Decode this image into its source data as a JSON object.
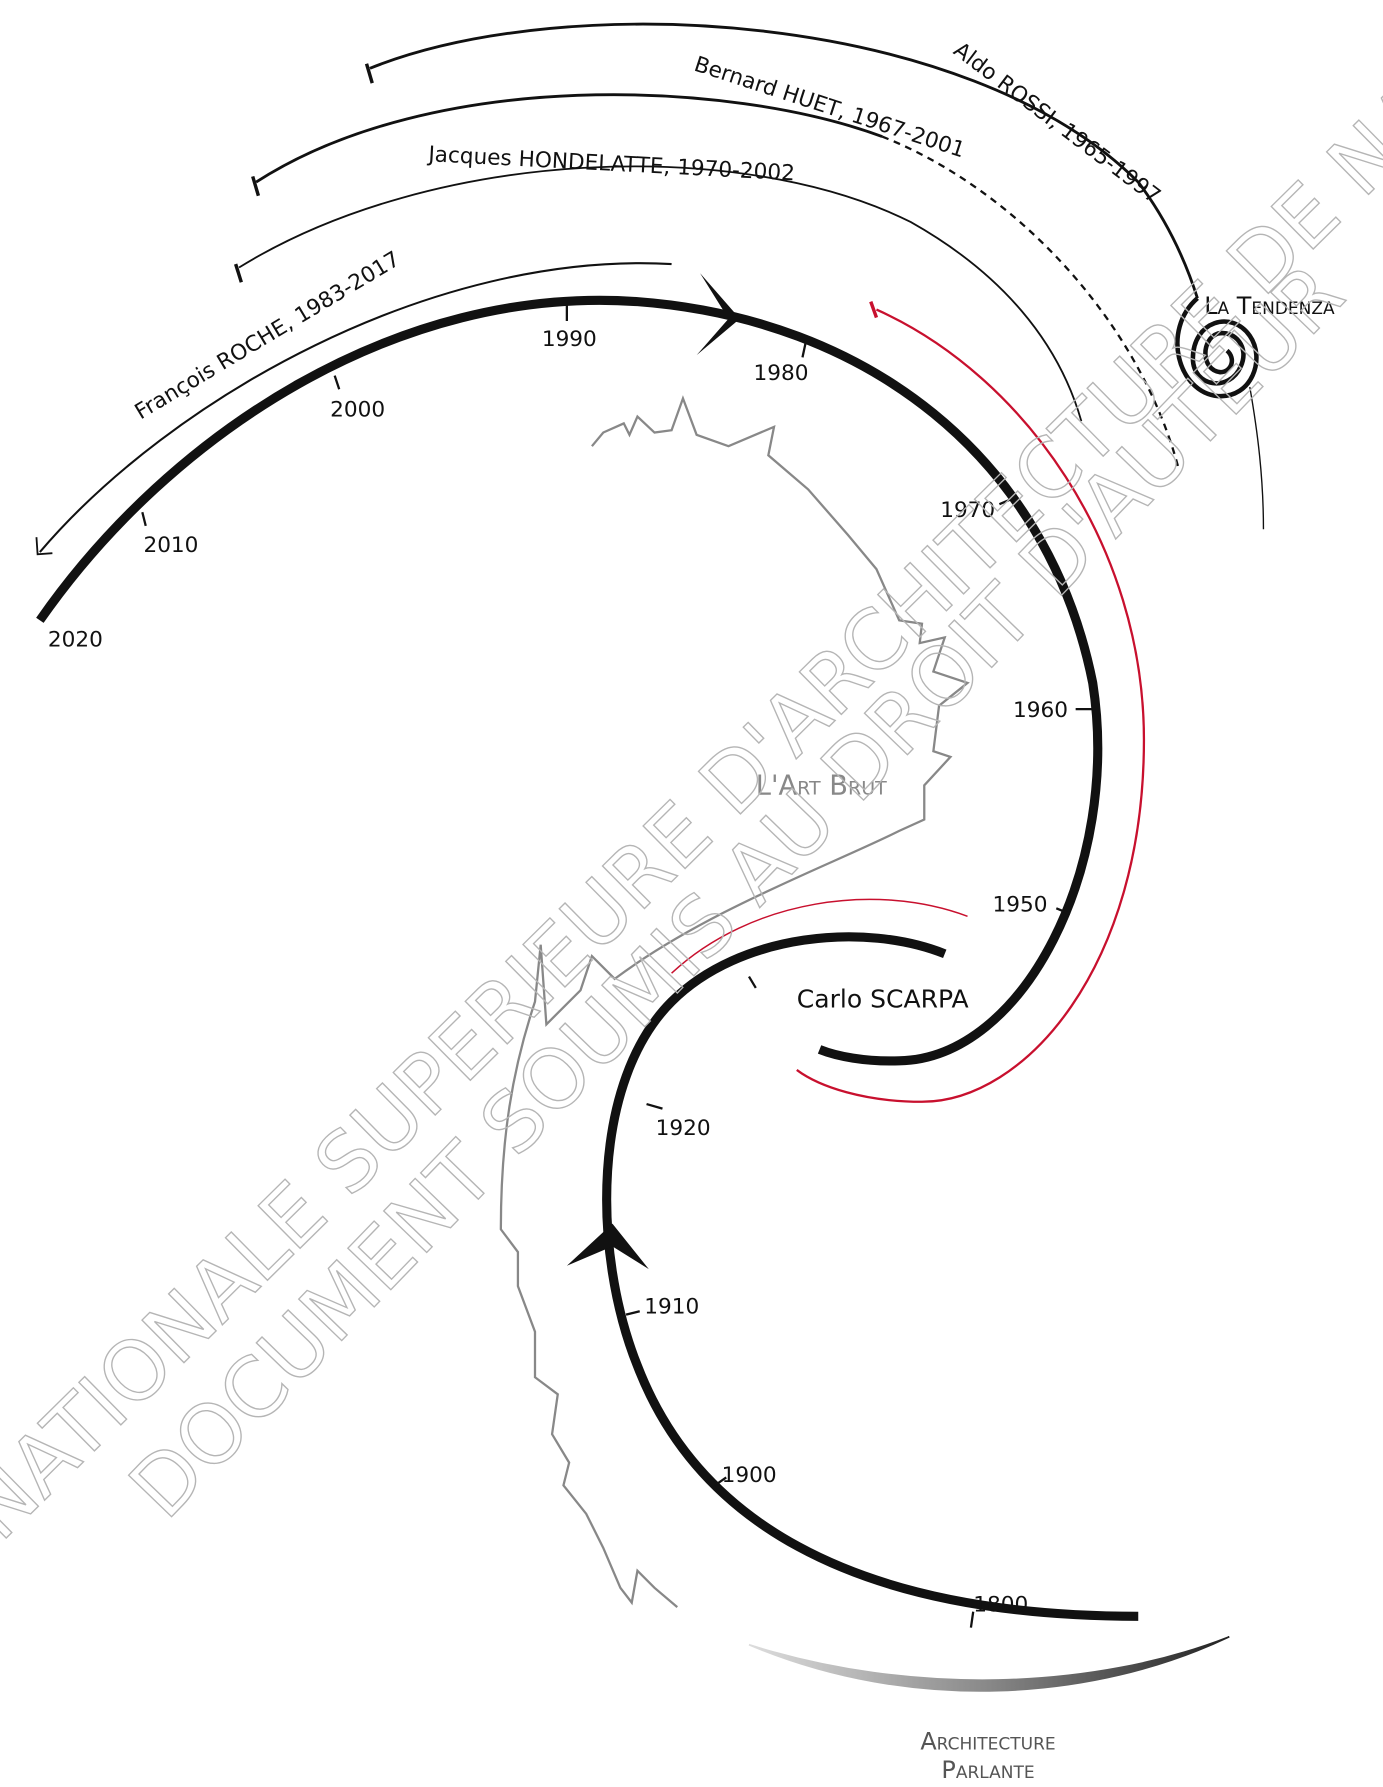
{
  "years": [
    "2020",
    "2010",
    "2000",
    "1990",
    "1980",
    "1970",
    "1960",
    "1950",
    "1920",
    "1910",
    "1900",
    "1800"
  ],
  "architects": [
    "Aldo ROSSI, 1965-1997",
    "Bernard HUET, 1967-2001",
    "Jacques HONDELATTE, 1970-2002",
    "François ROCHE, 1983-2017",
    "Carlo SCARPA"
  ],
  "movements": {
    "tendenza": "La Tendenza",
    "art_brut": "L'Art Brut",
    "parlante": [
      "Architecture",
      "Parlante"
    ]
  },
  "watermark": [
    "ECOLE NATIONALE SUPERIEURE D'ARCHITECTURE DE NANTES",
    "DOCUMENT SOUMIS AU DROIT D'AUTEUR"
  ]
}
